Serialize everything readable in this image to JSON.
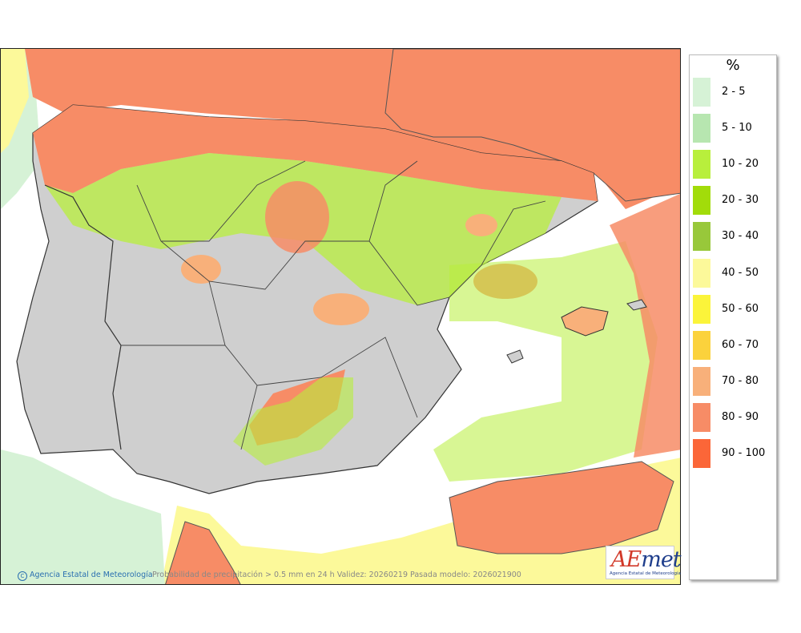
{
  "legend": {
    "title": "%",
    "items": [
      {
        "label": "2 - 5",
        "color": "#d6f2d6"
      },
      {
        "label": "5 - 10",
        "color": "#b7e6b0"
      },
      {
        "label": "10 - 20",
        "color": "#b8ef3c"
      },
      {
        "label": "20 - 30",
        "color": "#a2dc0a"
      },
      {
        "label": "30 - 40",
        "color": "#98c83a"
      },
      {
        "label": "40 - 50",
        "color": "#fcf99a"
      },
      {
        "label": "50 - 60",
        "color": "#fbf43a"
      },
      {
        "label": "60 - 70",
        "color": "#fbd23c"
      },
      {
        "label": "70 - 80",
        "color": "#f8b07a"
      },
      {
        "label": "80 - 90",
        "color": "#f78c66"
      },
      {
        "label": "90 - 100",
        "color": "#fb6638"
      }
    ]
  },
  "credit": "Agencia Estatal de Meteorología",
  "caption": "Probabilidad de precipitación > 0.5 mm en 24 h Validez: 20260219 Pasada modelo: 2026021900",
  "logo": {
    "wordmark_ae": "AE",
    "wordmark_rest": "met",
    "subtitle": "Agencia Estatal de Meteorología"
  }
}
